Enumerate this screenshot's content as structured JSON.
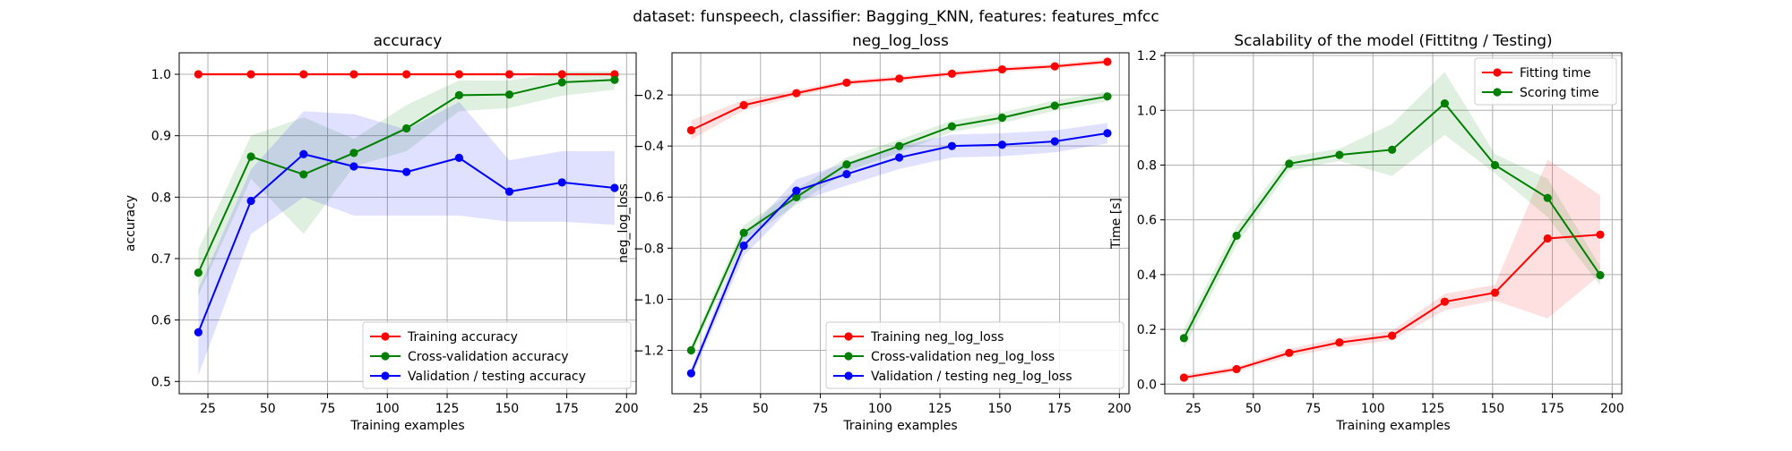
{
  "figure": {
    "suptitle": "dataset: funspeech, classifier: Bagging_KNN, features: features_mfcc"
  },
  "colors": {
    "red": "#ff0000",
    "green": "#008000",
    "blue": "#0000ff",
    "grid": "#b0b0b0"
  },
  "chart_data": [
    {
      "type": "line",
      "title": "accuracy",
      "xlabel": "Training examples",
      "ylabel": "accuracy",
      "xlim": [
        13,
        204
      ],
      "ylim": [
        0.48,
        1.035
      ],
      "xticks": [
        25,
        50,
        75,
        100,
        125,
        150,
        175,
        200
      ],
      "yticks": [
        0.5,
        0.6,
        0.7,
        0.8,
        0.9,
        1.0
      ],
      "ytick_labels": [
        "0.5",
        "0.6",
        "0.7",
        "0.8",
        "0.9",
        "1.0"
      ],
      "grid": true,
      "legend_position": "lower-right",
      "x": [
        21,
        43,
        65,
        86,
        108,
        130,
        151,
        173,
        195
      ],
      "series": [
        {
          "name": "Training accuracy",
          "color": "#ff0000",
          "values": [
            1.0,
            1.0,
            1.0,
            1.0,
            1.0,
            1.0,
            1.0,
            1.0,
            1.0
          ],
          "lower": [
            0.997,
            0.997,
            0.997,
            0.997,
            0.997,
            0.997,
            0.997,
            0.997,
            0.997
          ],
          "upper": [
            1.003,
            1.003,
            1.003,
            1.003,
            1.003,
            1.003,
            1.003,
            1.003,
            1.003
          ]
        },
        {
          "name": "Cross-validation accuracy",
          "color": "#008000",
          "values": [
            0.677,
            0.866,
            0.837,
            0.872,
            0.912,
            0.966,
            0.967,
            0.987,
            0.991
          ],
          "lower": [
            0.64,
            0.83,
            0.74,
            0.85,
            0.875,
            0.94,
            0.945,
            0.965,
            0.975
          ],
          "upper": [
            0.715,
            0.9,
            0.93,
            0.895,
            0.95,
            0.99,
            0.99,
            1.005,
            1.005
          ]
        },
        {
          "name": "Validation / testing accuracy",
          "color": "#0000ff",
          "values": [
            0.58,
            0.794,
            0.87,
            0.85,
            0.841,
            0.864,
            0.809,
            0.824,
            0.815
          ],
          "lower": [
            0.51,
            0.74,
            0.8,
            0.77,
            0.77,
            0.77,
            0.76,
            0.76,
            0.755
          ],
          "upper": [
            0.65,
            0.845,
            0.94,
            0.935,
            0.91,
            0.955,
            0.86,
            0.875,
            0.875
          ]
        }
      ]
    },
    {
      "type": "line",
      "title": "neg_log_loss",
      "xlabel": "Training examples",
      "ylabel": "neg_log_loss",
      "xlim": [
        13,
        204
      ],
      "ylim": [
        -1.37,
        -0.035
      ],
      "xticks": [
        25,
        50,
        75,
        100,
        125,
        150,
        175,
        200
      ],
      "yticks": [
        -1.2,
        -1.0,
        -0.8,
        -0.6,
        -0.4,
        -0.2
      ],
      "ytick_labels": [
        "−1.2",
        "−1.0",
        "−0.8",
        "−0.6",
        "−0.4",
        "−0.2"
      ],
      "grid": true,
      "legend_position": "lower-right",
      "x": [
        21,
        43,
        65,
        86,
        108,
        130,
        151,
        173,
        195
      ],
      "series": [
        {
          "name": "Training neg_log_loss",
          "color": "#ff0000",
          "values": [
            -0.338,
            -0.24,
            -0.193,
            -0.152,
            -0.136,
            -0.117,
            -0.1,
            -0.088,
            -0.07
          ],
          "lower": [
            -0.375,
            -0.26,
            -0.205,
            -0.162,
            -0.146,
            -0.127,
            -0.11,
            -0.098,
            -0.08
          ],
          "upper": [
            -0.3,
            -0.22,
            -0.181,
            -0.142,
            -0.126,
            -0.107,
            -0.09,
            -0.078,
            -0.06
          ]
        },
        {
          "name": "Cross-validation neg_log_loss",
          "color": "#008000",
          "values": [
            -1.2,
            -0.74,
            -0.6,
            -0.472,
            -0.4,
            -0.323,
            -0.289,
            -0.242,
            -0.206
          ],
          "lower": [
            -1.22,
            -0.77,
            -0.63,
            -0.5,
            -0.425,
            -0.345,
            -0.31,
            -0.262,
            -0.226
          ],
          "upper": [
            -1.18,
            -0.71,
            -0.57,
            -0.445,
            -0.375,
            -0.301,
            -0.268,
            -0.222,
            -0.186
          ]
        },
        {
          "name": "Validation / testing neg_log_loss",
          "color": "#0000ff",
          "values": [
            -1.29,
            -0.79,
            -0.575,
            -0.51,
            -0.445,
            -0.4,
            -0.395,
            -0.382,
            -0.35
          ],
          "lower": [
            -1.31,
            -0.83,
            -0.62,
            -0.555,
            -0.49,
            -0.445,
            -0.44,
            -0.425,
            -0.39
          ],
          "upper": [
            -1.27,
            -0.75,
            -0.53,
            -0.465,
            -0.4,
            -0.355,
            -0.35,
            -0.339,
            -0.31
          ]
        }
      ]
    },
    {
      "type": "line",
      "title": "Scalability of the model (Fittitng / Testing)",
      "xlabel": "Training examples",
      "ylabel": "Time [s]",
      "xlim": [
        13,
        204
      ],
      "ylim": [
        -0.035,
        1.21
      ],
      "xticks": [
        25,
        50,
        75,
        100,
        125,
        150,
        175,
        200
      ],
      "yticks": [
        0.0,
        0.2,
        0.4,
        0.6,
        0.8,
        1.0,
        1.2
      ],
      "ytick_labels": [
        "0.0",
        "0.2",
        "0.4",
        "0.6",
        "0.8",
        "1.0",
        "1.2"
      ],
      "grid": true,
      "legend_position": "upper-right",
      "x": [
        21,
        43,
        65,
        86,
        108,
        130,
        151,
        173,
        195
      ],
      "series": [
        {
          "name": "Fitting time",
          "color": "#ff0000",
          "values": [
            0.024,
            0.055,
            0.114,
            0.152,
            0.177,
            0.301,
            0.334,
            0.532,
            0.546
          ],
          "lower": [
            0.014,
            0.045,
            0.1,
            0.135,
            0.16,
            0.27,
            0.305,
            0.24,
            0.4
          ],
          "upper": [
            0.034,
            0.065,
            0.128,
            0.169,
            0.195,
            0.33,
            0.363,
            0.82,
            0.69
          ]
        },
        {
          "name": "Scoring time",
          "color": "#008000",
          "values": [
            0.168,
            0.542,
            0.805,
            0.837,
            0.856,
            1.025,
            0.8,
            0.68,
            0.398
          ],
          "lower": [
            0.13,
            0.51,
            0.78,
            0.815,
            0.76,
            0.91,
            0.77,
            0.61,
            0.36
          ],
          "upper": [
            0.2,
            0.575,
            0.83,
            0.86,
            0.95,
            1.14,
            0.84,
            0.75,
            0.43
          ]
        }
      ]
    }
  ]
}
